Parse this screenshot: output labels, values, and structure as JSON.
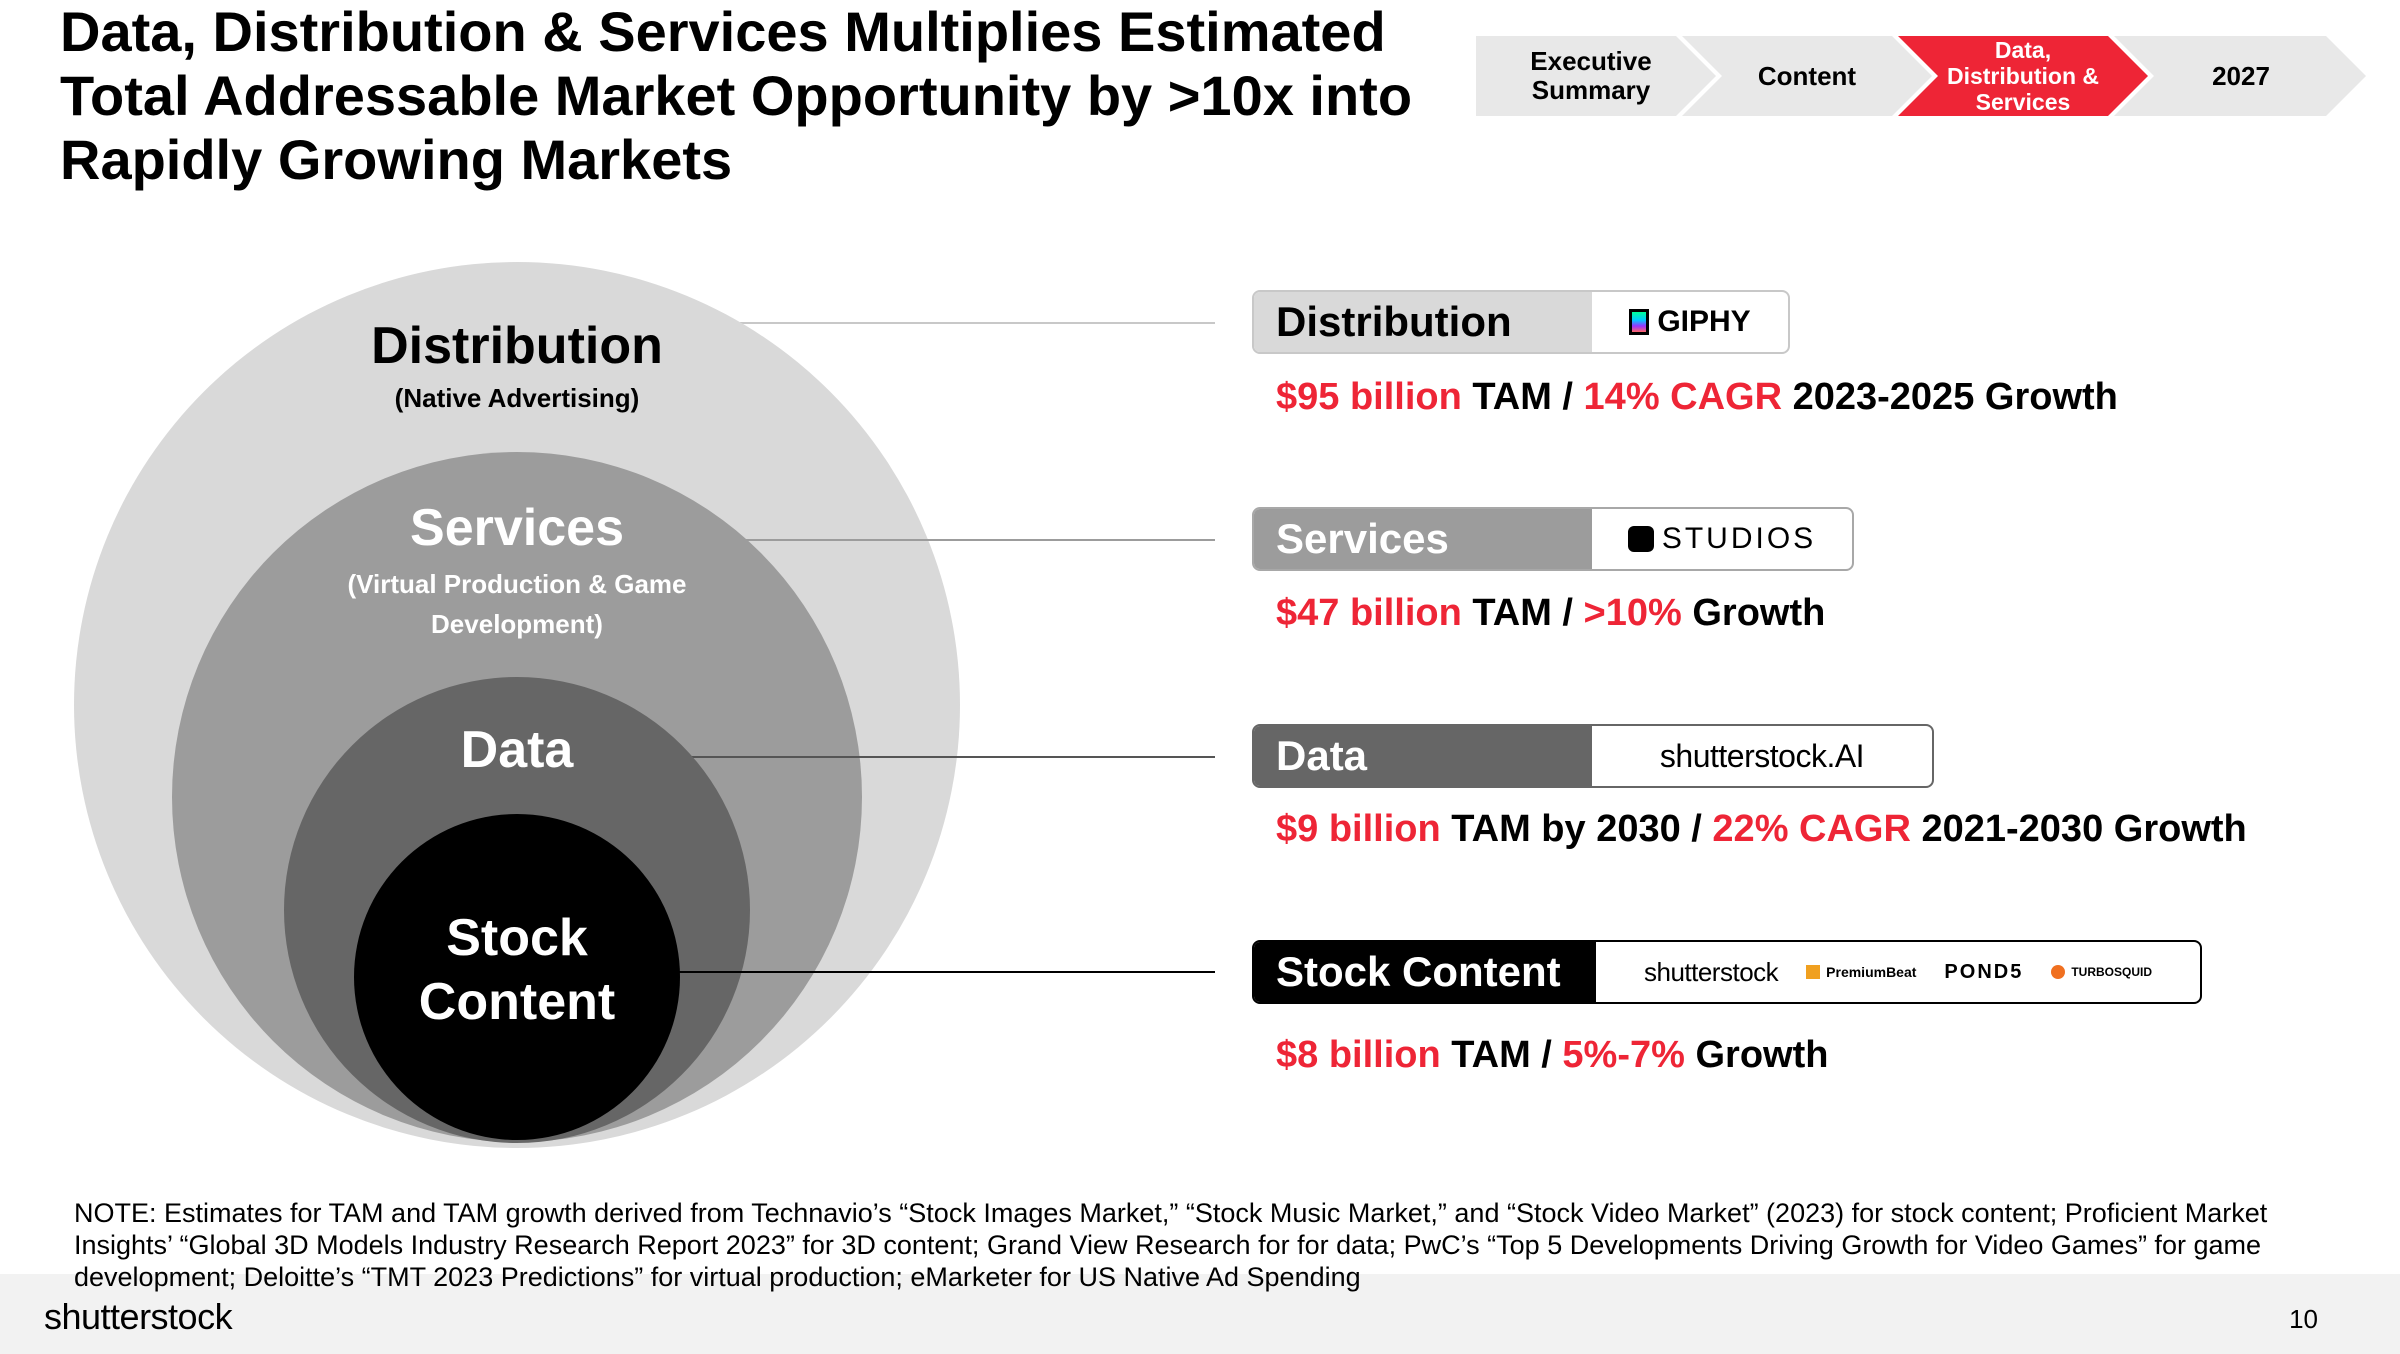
{
  "title": "Data, Distribution & Services Multiplies Estimated Total Addressable Market Opportunity by >10x into Rapidly Growing Markets",
  "nav": {
    "steps": [
      {
        "label": "Executive Summary",
        "active": false
      },
      {
        "label": "Content",
        "active": false
      },
      {
        "label": "Data, Distribution & Services",
        "active": true
      },
      {
        "label": "2027",
        "active": false
      }
    ]
  },
  "diagram": {
    "rings": [
      {
        "title": "Distribution",
        "subtitle": "(Native Advertising)"
      },
      {
        "title": "Services",
        "subtitle": "(Virtual Production & Game Development)"
      },
      {
        "title": "Data",
        "subtitle": ""
      },
      {
        "title": "Stock Content",
        "subtitle": ""
      }
    ]
  },
  "markets": [
    {
      "label": "Distribution",
      "logos": [
        "GIPHY"
      ],
      "stat": [
        {
          "text": "$95 billion",
          "highlight": true
        },
        {
          "text": " TAM  /  ",
          "highlight": false
        },
        {
          "text": "14% CAGR",
          "highlight": true
        },
        {
          "text": " 2023-2025 Growth",
          "highlight": false
        }
      ]
    },
    {
      "label": "Services",
      "logos": [
        "STUDIOS"
      ],
      "stat": [
        {
          "text": "$47 billion",
          "highlight": true
        },
        {
          "text": " TAM  /  ",
          "highlight": false
        },
        {
          "text": ">10%",
          "highlight": true
        },
        {
          "text": " Growth",
          "highlight": false
        }
      ]
    },
    {
      "label": "Data",
      "logos": [
        "shutterstock.AI"
      ],
      "stat": [
        {
          "text": "$9 billion",
          "highlight": true
        },
        {
          "text": " TAM by 2030  /  ",
          "highlight": false
        },
        {
          "text": "22% CAGR",
          "highlight": true
        },
        {
          "text": " 2021-2030 Growth",
          "highlight": false
        }
      ]
    },
    {
      "label": "Stock Content",
      "logos": [
        "shutterstock",
        "PremiumBeat",
        "POND5",
        "TURBOSQUID"
      ],
      "stat": [
        {
          "text": "$8 billion",
          "highlight": true
        },
        {
          "text": " TAM  /  ",
          "highlight": false
        },
        {
          "text": "5%-7%",
          "highlight": true
        },
        {
          "text": " Growth",
          "highlight": false
        }
      ]
    }
  ],
  "note": "NOTE: Estimates for TAM and TAM growth derived from Technavio’s “Stock Images Market,” “Stock Music Market,” and “Stock Video Market” (2023) for stock content; Proficient Market Insights’ “Global 3D Models Industry Research Report 2023” for 3D content; Grand View Research for for data; PwC’s “Top 5 Developments Driving Growth for Video Games” for game development; Deloitte’s “TMT 2023 Predictions” for virtual production; eMarketer for US Native Ad Spending",
  "footer": {
    "brand": "shutterstock",
    "page_number": "10"
  },
  "colors": {
    "accent_red": "#ee2536",
    "ring_distribution": "#d9d9d9",
    "ring_services": "#9c9c9c",
    "ring_data": "#666666",
    "ring_stock": "#000000"
  }
}
